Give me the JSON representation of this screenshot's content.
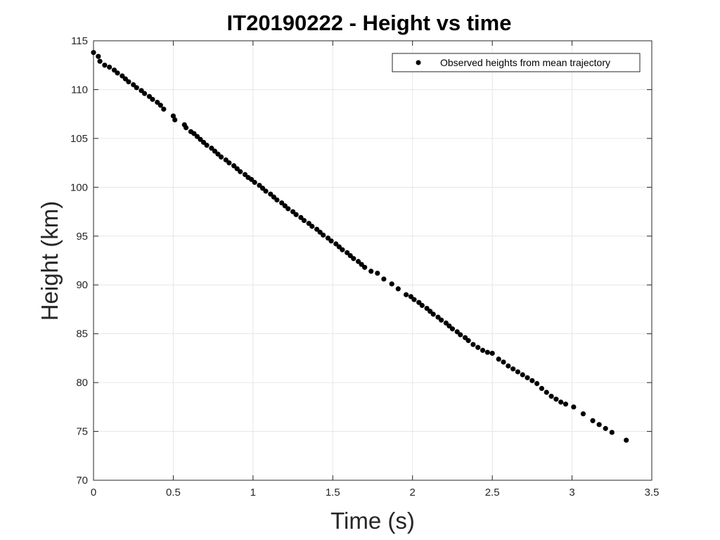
{
  "chart_data": {
    "type": "scatter",
    "title": "IT20190222 - Height vs time",
    "xlabel": "Time (s)",
    "ylabel": "Height (km)",
    "xlim": [
      0,
      3.5
    ],
    "ylim": [
      70,
      115
    ],
    "xticks": [
      "0",
      "0.5",
      "1",
      "1.5",
      "2",
      "2.5",
      "3",
      "3.5"
    ],
    "yticks": [
      "70",
      "75",
      "80",
      "85",
      "90",
      "95",
      "100",
      "105",
      "110",
      "115"
    ],
    "grid": true,
    "legend": {
      "placement": "top-right"
    },
    "series": [
      {
        "name": "Observed heights from mean trajectory",
        "color": "#000000",
        "points": [
          [
            0.0,
            113.8
          ],
          [
            0.03,
            113.4
          ],
          [
            0.04,
            112.9
          ],
          [
            0.07,
            112.5
          ],
          [
            0.1,
            112.3
          ],
          [
            0.13,
            112.0
          ],
          [
            0.15,
            111.7
          ],
          [
            0.18,
            111.4
          ],
          [
            0.2,
            111.1
          ],
          [
            0.22,
            110.8
          ],
          [
            0.25,
            110.5
          ],
          [
            0.27,
            110.2
          ],
          [
            0.3,
            109.9
          ],
          [
            0.32,
            109.6
          ],
          [
            0.35,
            109.3
          ],
          [
            0.37,
            109.0
          ],
          [
            0.4,
            108.7
          ],
          [
            0.42,
            108.4
          ],
          [
            0.44,
            108.0
          ],
          [
            0.5,
            107.3
          ],
          [
            0.51,
            106.9
          ],
          [
            0.57,
            106.4
          ],
          [
            0.58,
            106.1
          ],
          [
            0.61,
            105.7
          ],
          [
            0.63,
            105.5
          ],
          [
            0.65,
            105.2
          ],
          [
            0.67,
            104.9
          ],
          [
            0.69,
            104.6
          ],
          [
            0.71,
            104.3
          ],
          [
            0.74,
            104.0
          ],
          [
            0.76,
            103.7
          ],
          [
            0.78,
            103.4
          ],
          [
            0.8,
            103.1
          ],
          [
            0.83,
            102.8
          ],
          [
            0.85,
            102.5
          ],
          [
            0.88,
            102.2
          ],
          [
            0.9,
            101.9
          ],
          [
            0.92,
            101.6
          ],
          [
            0.95,
            101.3
          ],
          [
            0.97,
            101.0
          ],
          [
            0.99,
            100.8
          ],
          [
            1.01,
            100.5
          ],
          [
            1.04,
            100.2
          ],
          [
            1.06,
            99.9
          ],
          [
            1.08,
            99.6
          ],
          [
            1.11,
            99.3
          ],
          [
            1.13,
            99.0
          ],
          [
            1.15,
            98.7
          ],
          [
            1.18,
            98.4
          ],
          [
            1.2,
            98.1
          ],
          [
            1.22,
            97.8
          ],
          [
            1.25,
            97.5
          ],
          [
            1.27,
            97.2
          ],
          [
            1.3,
            96.9
          ],
          [
            1.32,
            96.6
          ],
          [
            1.35,
            96.3
          ],
          [
            1.37,
            96.0
          ],
          [
            1.4,
            95.7
          ],
          [
            1.42,
            95.4
          ],
          [
            1.44,
            95.1
          ],
          [
            1.47,
            94.8
          ],
          [
            1.49,
            94.5
          ],
          [
            1.52,
            94.2
          ],
          [
            1.54,
            93.9
          ],
          [
            1.56,
            93.6
          ],
          [
            1.59,
            93.3
          ],
          [
            1.61,
            93.0
          ],
          [
            1.63,
            92.7
          ],
          [
            1.66,
            92.4
          ],
          [
            1.68,
            92.1
          ],
          [
            1.7,
            91.8
          ],
          [
            1.74,
            91.4
          ],
          [
            1.78,
            91.2
          ],
          [
            1.82,
            90.6
          ],
          [
            1.87,
            90.1
          ],
          [
            1.91,
            89.6
          ],
          [
            1.96,
            89.0
          ],
          [
            1.99,
            88.8
          ],
          [
            2.01,
            88.5
          ],
          [
            2.04,
            88.2
          ],
          [
            2.06,
            87.9
          ],
          [
            2.09,
            87.6
          ],
          [
            2.11,
            87.3
          ],
          [
            2.13,
            87.0
          ],
          [
            2.16,
            86.7
          ],
          [
            2.18,
            86.4
          ],
          [
            2.21,
            86.1
          ],
          [
            2.23,
            85.8
          ],
          [
            2.25,
            85.5
          ],
          [
            2.28,
            85.2
          ],
          [
            2.3,
            84.9
          ],
          [
            2.33,
            84.6
          ],
          [
            2.35,
            84.3
          ],
          [
            2.38,
            83.9
          ],
          [
            2.41,
            83.6
          ],
          [
            2.44,
            83.3
          ],
          [
            2.47,
            83.1
          ],
          [
            2.5,
            83.0
          ],
          [
            2.54,
            82.4
          ],
          [
            2.57,
            82.1
          ],
          [
            2.6,
            81.7
          ],
          [
            2.63,
            81.4
          ],
          [
            2.66,
            81.1
          ],
          [
            2.69,
            80.8
          ],
          [
            2.72,
            80.5
          ],
          [
            2.75,
            80.2
          ],
          [
            2.78,
            79.9
          ],
          [
            2.81,
            79.4
          ],
          [
            2.84,
            79.0
          ],
          [
            2.87,
            78.6
          ],
          [
            2.9,
            78.3
          ],
          [
            2.93,
            78.0
          ],
          [
            2.96,
            77.8
          ],
          [
            3.01,
            77.5
          ],
          [
            3.07,
            76.8
          ],
          [
            3.13,
            76.1
          ],
          [
            3.17,
            75.7
          ],
          [
            3.21,
            75.3
          ],
          [
            3.25,
            74.9
          ],
          [
            3.34,
            74.1
          ]
        ]
      }
    ]
  }
}
